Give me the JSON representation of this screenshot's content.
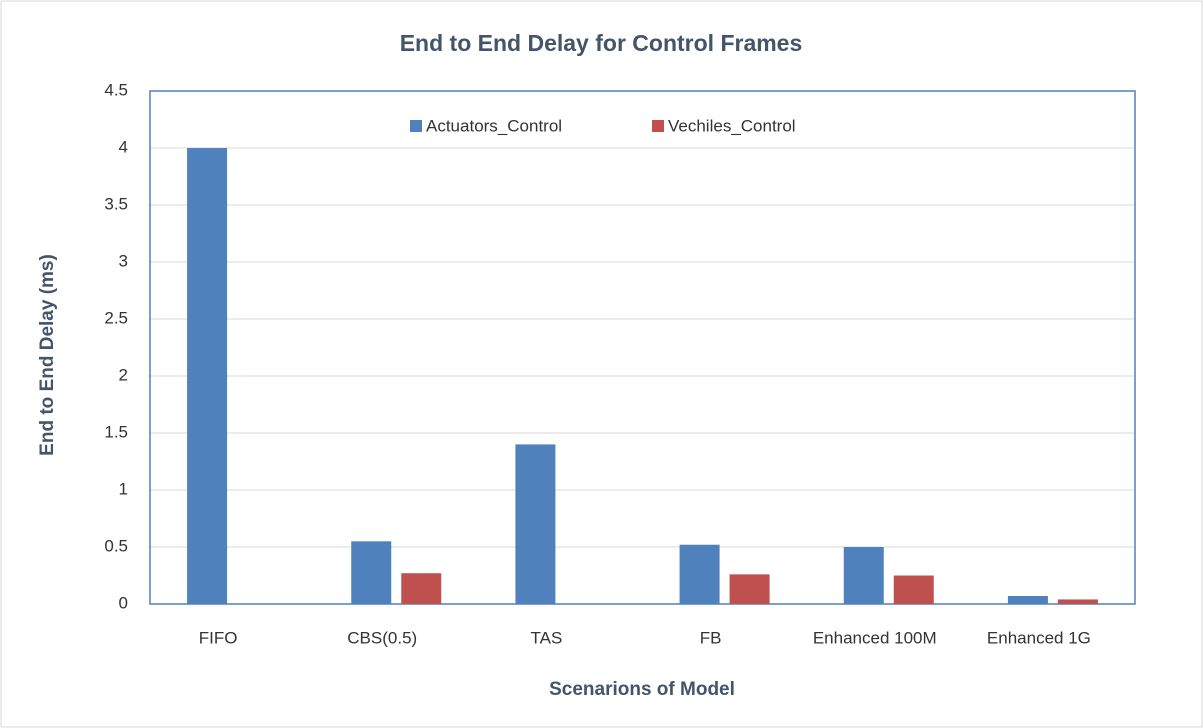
{
  "chart_data": {
    "type": "bar",
    "title": "End to End Delay for Control Frames",
    "x_label": "Scenarions of Model",
    "y_label": "End to End Delay (ms)",
    "categories": [
      "FIFO",
      "CBS(0.5)",
      "TAS",
      "FB",
      "Enhanced 100M",
      "Enhanced 1G"
    ],
    "series": [
      {
        "name": "Actuators_Control",
        "color": "#4f81bd",
        "values": [
          4,
          0.55,
          1.4,
          0.52,
          0.5,
          0.07
        ]
      },
      {
        "name": "Vechiles_Control",
        "color": "#c0504d",
        "values": [
          0,
          0.27,
          0,
          0.26,
          0.25,
          0.04
        ]
      }
    ],
    "ylim": [
      0,
      4.5
    ],
    "yticks": [
      0,
      0.5,
      1,
      1.5,
      2,
      2.5,
      3,
      3.5,
      4,
      4.5
    ],
    "grid": true,
    "legend": "top"
  }
}
